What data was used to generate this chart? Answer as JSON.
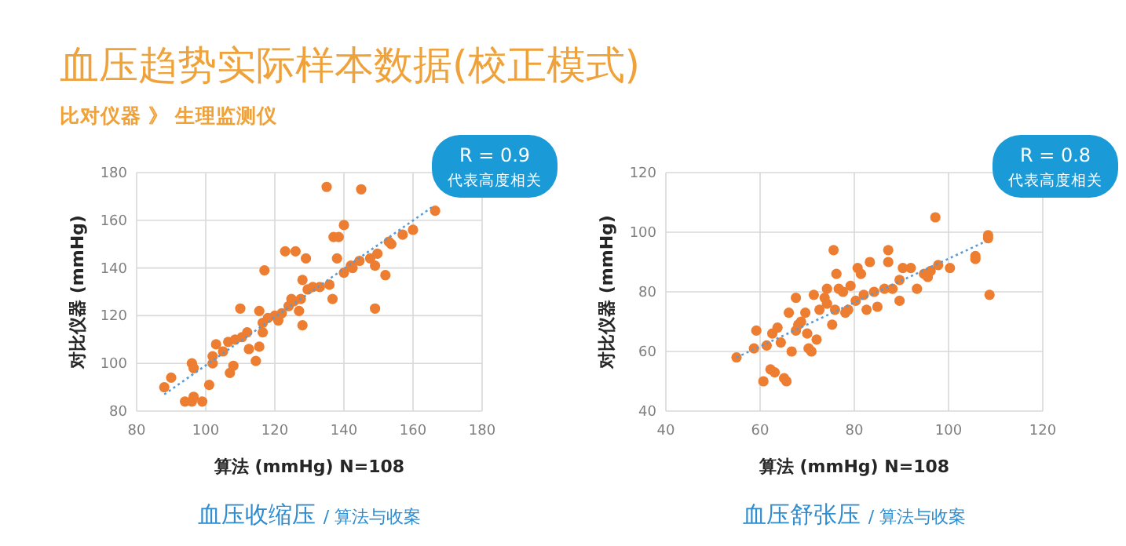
{
  "chart_data": [
    {
      "type": "other",
      "title": "血压趋势实际样本数据(校正模式)",
      "subtitle": "比对仪器 》 生理监测仪"
    },
    {
      "type": "scatter",
      "xlabel": "算法 (mmHg)   N=108",
      "ylabel": "对比仪器 (mmHg)",
      "annotations": [
        "R = 0.9",
        "代表高度相关",
        "血压收缩压",
        "/ 算法与收案"
      ],
      "xlim": [
        80,
        180
      ],
      "ylim": [
        80,
        180
      ],
      "xticks": [
        80,
        100,
        120,
        140,
        160,
        180
      ],
      "yticks": [
        80,
        100,
        120,
        140,
        160,
        180
      ],
      "grid": true,
      "marker": "circle",
      "series": [
        {
          "type": "scatter",
          "color": "#ed7d31",
          "x": [
            88,
            90,
            94,
            96,
            96.5,
            96,
            96.5,
            99,
            101,
            102,
            102,
            103,
            105,
            107,
            108,
            106.5,
            108.5,
            110,
            110.5,
            112,
            112.5,
            114.5,
            115.5,
            115.5,
            116.5,
            116.5,
            117,
            118,
            120,
            121,
            122,
            123,
            126,
            124,
            124.8,
            125.5,
            127,
            128,
            127.5,
            128,
            129,
            129.5,
            131,
            133,
            135,
            135.8,
            136.7,
            137,
            138,
            138.5,
            140,
            140,
            142,
            142.5,
            144.5,
            145,
            147.6,
            149,
            149,
            149.7,
            152,
            153,
            153.7,
            157,
            160,
            166.4
          ],
          "values": [
            90,
            94,
            84,
            84,
            86,
            100,
            98,
            84,
            91,
            100,
            103,
            108,
            105,
            96,
            99,
            109,
            110,
            123,
            111,
            113,
            106,
            101,
            107,
            122,
            113,
            117,
            139,
            119,
            120,
            118,
            121,
            147,
            147,
            124,
            127,
            126,
            122,
            116,
            127,
            135,
            144,
            131,
            132,
            132,
            174,
            133,
            127,
            153,
            144,
            153,
            158,
            138,
            141,
            140,
            143,
            173,
            144,
            141,
            123,
            146,
            137,
            151,
            150,
            154,
            156,
            164
          ]
        },
        {
          "type": "line",
          "color": "#5b9bd5",
          "line_style": "dotted",
          "marker": "none",
          "x": [
            88,
            166
          ],
          "values": [
            87,
            166
          ]
        }
      ]
    },
    {
      "type": "scatter",
      "xlabel": "算法 (mmHg)   N=108",
      "ylabel": "对比仪器 (mmHg)",
      "annotations": [
        "R = 0.8",
        "代表高度相关",
        "血压舒张压",
        "/ 算法与收案"
      ],
      "xlim": [
        40,
        120
      ],
      "ylim": [
        40,
        120
      ],
      "xticks": [
        40,
        60,
        80,
        100,
        120
      ],
      "yticks": [
        40,
        60,
        80,
        100,
        120
      ],
      "grid": true,
      "marker": "circle",
      "series": [
        {
          "type": "scatter",
          "color": "#ed7d31",
          "x": [
            55,
            58.7,
            59.2,
            60.7,
            61.4,
            62.2,
            63.1,
            62.6,
            63.7,
            64.4,
            65.1,
            65.6,
            66.1,
            66.7,
            67.6,
            67.6,
            68.1,
            68.7,
            69.6,
            70,
            70.3,
            70.9,
            71.4,
            72,
            72.6,
            73.7,
            74.2,
            74.2,
            75.3,
            75.6,
            75.9,
            76.2,
            76.7,
            77.6,
            78.1,
            78.7,
            79.2,
            80.3,
            80.7,
            81.4,
            82,
            82.6,
            83.3,
            84.2,
            84.9,
            86.4,
            87.2,
            87.2,
            88.1,
            89.6,
            89.6,
            90.3,
            92,
            93.3,
            94.8,
            95.6,
            96.2,
            97.2,
            97.8,
            100.3,
            105.7,
            105.7,
            108.4,
            108.4,
            108.7
          ],
          "values": [
            58,
            61,
            67,
            50,
            62,
            54,
            53,
            66,
            68,
            63,
            51,
            50,
            73,
            60,
            78,
            67,
            69,
            70,
            73,
            66,
            61,
            60,
            79,
            64,
            74,
            78,
            81,
            76,
            69,
            94,
            74,
            86,
            81,
            80,
            73,
            74,
            82,
            77,
            88,
            86,
            79,
            74,
            90,
            80,
            75,
            81,
            94,
            90,
            81,
            77,
            84,
            88,
            88,
            81,
            86,
            85,
            87,
            105,
            89,
            88,
            92,
            91,
            99,
            98,
            79
          ]
        },
        {
          "type": "line",
          "color": "#5b9bd5",
          "line_style": "dotted",
          "marker": "none",
          "x": [
            55,
            108
          ],
          "values": [
            58,
            97
          ]
        }
      ]
    }
  ]
}
